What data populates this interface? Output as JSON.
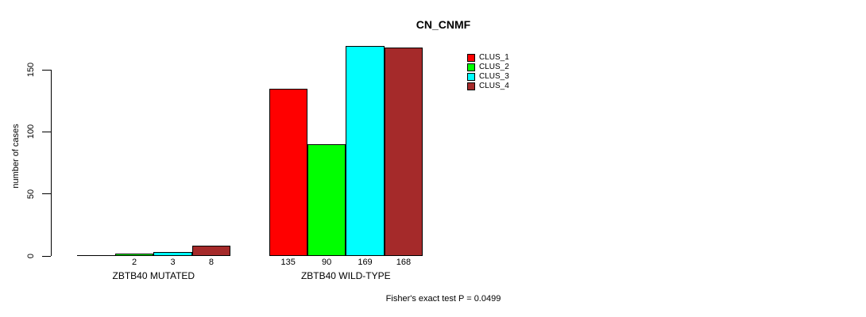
{
  "chart_data": {
    "type": "bar",
    "title": "CN_CNMF",
    "ylabel": "number of cases",
    "xlabel": "",
    "categories": [
      "ZBTB40 MUTATED",
      "ZBTB40 WILD-TYPE"
    ],
    "series": [
      {
        "name": "CLUS_1",
        "color": "#ff0000",
        "values": [
          0,
          135
        ]
      },
      {
        "name": "CLUS_2",
        "color": "#00ff00",
        "values": [
          2,
          90
        ]
      },
      {
        "name": "CLUS_3",
        "color": "#00ffff",
        "values": [
          3,
          169
        ]
      },
      {
        "name": "CLUS_4",
        "color": "#a52a2a",
        "values": [
          8,
          168
        ]
      }
    ],
    "yticks": [
      0,
      50,
      100,
      150
    ],
    "ylim": [
      0,
      175
    ],
    "grid": false,
    "legend_position": "top-right",
    "bar_value_labels_shown": true,
    "zero_value_label_hidden": true,
    "bar_border_color": "#000000",
    "annotation": "Fisher's exact test P = 0.0499"
  }
}
